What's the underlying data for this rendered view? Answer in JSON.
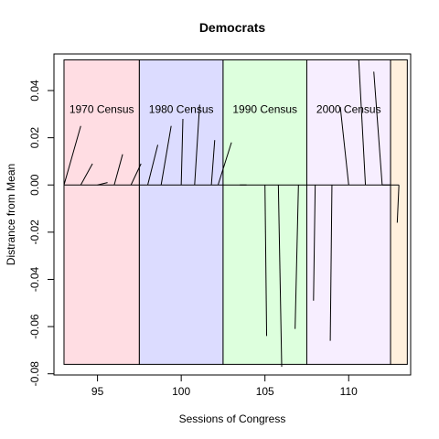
{
  "chart_data": {
    "type": "line",
    "title": "Democrats",
    "xlabel": "Sessions of Congress",
    "ylabel": "Distrance from Mean",
    "xlim": [
      92.4,
      113.7
    ],
    "ylim": [
      -0.0805,
      0.0555
    ],
    "x_ticks": [
      95,
      100,
      105,
      110
    ],
    "y_ticks": [
      -0.08,
      -0.06,
      -0.04,
      -0.02,
      0.0,
      0.02,
      0.04
    ],
    "y_tick_labels": [
      "-0.08",
      "-0.06",
      "-0.04",
      "-0.02",
      "0.00",
      "0.02",
      "0.04"
    ],
    "grid": false,
    "baseline": 0,
    "bands": [
      {
        "label": "1970 Census",
        "x_start": 93,
        "x_end": 97.5,
        "color": "#ffdde3"
      },
      {
        "label": "1980 Census",
        "x_start": 97.5,
        "x_end": 102.5,
        "color": "#dcdcff"
      },
      {
        "label": "1990 Census",
        "x_start": 102.5,
        "x_end": 107.5,
        "color": "#ddffdd"
      },
      {
        "label": "2000 Census",
        "x_start": 107.5,
        "x_end": 112.5,
        "color": "#f7eeff"
      },
      {
        "label": "",
        "x_start": 112.5,
        "x_end": 113.5,
        "color": "#fff0dd"
      }
    ],
    "band_ylim": [
      -0.076,
      0.053
    ],
    "label_y": 0.032,
    "series": [
      {
        "segments": [
          {
            "x0": 93.0,
            "x1": 94.0,
            "y": 0.025
          },
          {
            "x0": 94.0,
            "x1": 94.7,
            "y": 0.009
          },
          {
            "x0": 95.0,
            "x1": 95.6,
            "y": 0.001
          },
          {
            "x0": 96.0,
            "x1": 96.5,
            "y": 0.013
          },
          {
            "x0": 97.0,
            "x1": 97.6,
            "y": 0.009
          },
          {
            "x0": 98.0,
            "x1": 98.6,
            "y": 0.017
          },
          {
            "x0": 98.8,
            "x1": 99.4,
            "y": 0.025
          },
          {
            "x0": 100.0,
            "x1": 100.1,
            "y": 0.028
          },
          {
            "x0": 100.8,
            "x1": 101.1,
            "y": 0.034
          },
          {
            "x0": 101.8,
            "x1": 102.0,
            "y": 0.019
          },
          {
            "x0": 102.2,
            "x1": 103.0,
            "y": 0.018
          },
          {
            "x0": 103.5,
            "x1": 103.9,
            "y": 0.0
          },
          {
            "x0": 105.0,
            "x1": 105.1,
            "y": -0.064
          },
          {
            "x0": 105.8,
            "x1": 106.0,
            "y": -0.077
          },
          {
            "x0": 107.0,
            "x1": 106.8,
            "y": -0.061
          },
          {
            "x0": 108.0,
            "x1": 107.9,
            "y": -0.049
          },
          {
            "x0": 109.0,
            "x1": 108.9,
            "y": -0.066
          },
          {
            "x0": 110.0,
            "x1": 109.5,
            "y": 0.033
          },
          {
            "x0": 111.0,
            "x1": 110.6,
            "y": 0.053
          },
          {
            "x0": 112.0,
            "x1": 111.5,
            "y": 0.048
          },
          {
            "x0": 112.5,
            "x1": 112.0,
            "y": 0.0
          },
          {
            "x0": 113.0,
            "x1": 112.9,
            "y": -0.016
          }
        ]
      }
    ]
  }
}
